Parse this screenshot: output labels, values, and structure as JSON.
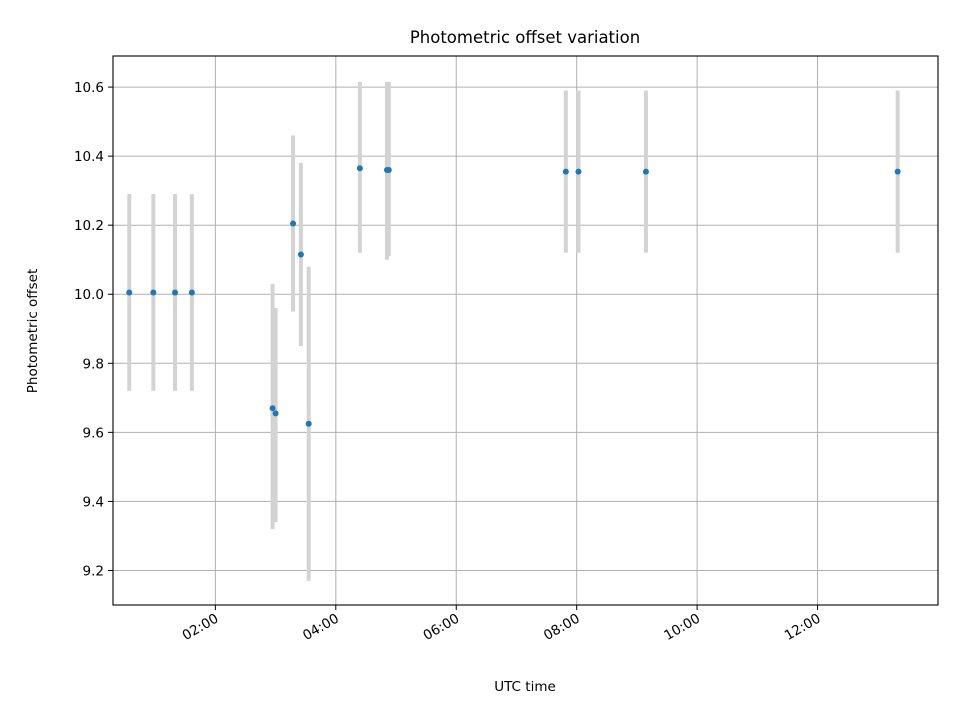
{
  "chart_data": {
    "type": "scatter",
    "title": "Photometric offset variation",
    "xlabel": "UTC time",
    "ylabel": "Photometric offset",
    "x_unit": "hours",
    "xlim": [
      0.3,
      14.0
    ],
    "ylim": [
      9.1,
      10.69
    ],
    "x_ticks": [
      {
        "value": 2,
        "label": "02:00"
      },
      {
        "value": 4,
        "label": "04:00"
      },
      {
        "value": 6,
        "label": "06:00"
      },
      {
        "value": 8,
        "label": "08:00"
      },
      {
        "value": 10,
        "label": "10:00"
      },
      {
        "value": 12,
        "label": "12:00"
      }
    ],
    "y_ticks": [
      {
        "value": 9.2,
        "label": "9.2"
      },
      {
        "value": 9.4,
        "label": "9.4"
      },
      {
        "value": 9.6,
        "label": "9.6"
      },
      {
        "value": 9.8,
        "label": "9.8"
      },
      {
        "value": 10.0,
        "label": "10.0"
      },
      {
        "value": 10.2,
        "label": "10.2"
      },
      {
        "value": 10.4,
        "label": "10.4"
      },
      {
        "value": 10.6,
        "label": "10.6"
      }
    ],
    "grid": true,
    "legend": "none",
    "point_color": "#1f77b4",
    "errorbar_color": "#d3d3d3",
    "points": [
      {
        "x": 0.57,
        "y": 10.005,
        "ylow": 9.72,
        "yhigh": 10.29
      },
      {
        "x": 0.97,
        "y": 10.005,
        "ylow": 9.72,
        "yhigh": 10.29
      },
      {
        "x": 1.33,
        "y": 10.005,
        "ylow": 9.72,
        "yhigh": 10.29
      },
      {
        "x": 1.61,
        "y": 10.005,
        "ylow": 9.72,
        "yhigh": 10.29
      },
      {
        "x": 2.95,
        "y": 9.67,
        "ylow": 9.32,
        "yhigh": 10.03
      },
      {
        "x": 3.0,
        "y": 9.655,
        "ylow": 9.34,
        "yhigh": 9.96
      },
      {
        "x": 3.29,
        "y": 10.205,
        "ylow": 9.95,
        "yhigh": 10.46
      },
      {
        "x": 3.42,
        "y": 10.115,
        "ylow": 9.85,
        "yhigh": 10.38
      },
      {
        "x": 3.55,
        "y": 9.625,
        "ylow": 9.17,
        "yhigh": 10.08
      },
      {
        "x": 4.4,
        "y": 10.365,
        "ylow": 10.12,
        "yhigh": 10.615
      },
      {
        "x": 4.85,
        "y": 10.36,
        "ylow": 10.1,
        "yhigh": 10.615
      },
      {
        "x": 4.88,
        "y": 10.36,
        "ylow": 10.11,
        "yhigh": 10.615
      },
      {
        "x": 7.82,
        "y": 10.355,
        "ylow": 10.12,
        "yhigh": 10.59
      },
      {
        "x": 8.03,
        "y": 10.355,
        "ylow": 10.12,
        "yhigh": 10.59
      },
      {
        "x": 9.15,
        "y": 10.355,
        "ylow": 10.12,
        "yhigh": 10.59
      },
      {
        "x": 13.33,
        "y": 10.355,
        "ylow": 10.12,
        "yhigh": 10.59
      }
    ]
  }
}
